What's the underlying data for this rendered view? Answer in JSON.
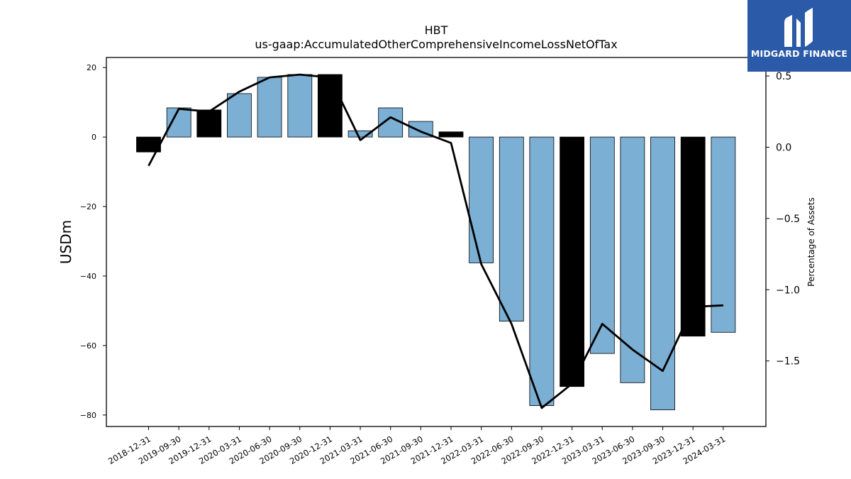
{
  "brand": {
    "name": "MIDGARD FINANCE",
    "color": "#2a5aa8"
  },
  "chart_data": {
    "type": "bar",
    "title": "HBT",
    "subtitle": "us-gaap:AccumulatedOtherComprehensiveIncomeLossNetOfTax",
    "ylabel": "USDm",
    "ylabel_right": "Percentage of Assets",
    "categories": [
      "2018-12-31",
      "2019-09-30",
      "2019-12-31",
      "2020-03-31",
      "2020-06-30",
      "2020-09-30",
      "2020-12-31",
      "2021-03-31",
      "2021-06-30",
      "2021-09-30",
      "2021-12-31",
      "2022-03-31",
      "2022-06-30",
      "2022-09-30",
      "2022-12-31",
      "2023-03-31",
      "2023-06-30",
      "2023-09-30",
      "2023-12-31",
      "2024-03-31"
    ],
    "series": [
      {
        "type": "bar",
        "axis": "left",
        "values": [
          -4.3,
          8.4,
          7.8,
          12.5,
          17.2,
          18.0,
          18.0,
          1.8,
          8.4,
          4.5,
          1.5,
          -36.2,
          -53.0,
          -77.3,
          -71.8,
          -62.3,
          -70.7,
          -78.5,
          -57.3,
          -56.2
        ]
      },
      {
        "type": "line",
        "axis": "right",
        "values": [
          -0.13,
          0.27,
          0.25,
          0.39,
          0.49,
          0.51,
          0.49,
          0.05,
          0.21,
          0.11,
          0.03,
          -0.82,
          -1.24,
          -1.83,
          -1.66,
          -1.24,
          -1.42,
          -1.57,
          -1.12,
          -1.11
        ]
      }
    ],
    "highlight_indices": [
      0,
      2,
      6,
      10,
      14,
      18
    ],
    "colors": {
      "bar": "#7bafd4",
      "highlight": "#000000",
      "line": "#000000"
    },
    "ylim": [
      -83.3,
      22.9
    ],
    "ylim_right": [
      -1.96,
      0.63
    ],
    "yticks": [
      20,
      0,
      -20,
      -40,
      -60,
      -80
    ],
    "yticks_right": [
      0.5,
      0.0,
      -0.5,
      -1.0,
      -1.5
    ],
    "ytick_labels": [
      "20",
      "0",
      "−20",
      "−40",
      "−60",
      "−80"
    ],
    "ytick_labels_right": [
      "0.5",
      "0.0",
      "−0.5",
      "−1.0",
      "−1.5"
    ],
    "grid": false,
    "legend": "none"
  }
}
